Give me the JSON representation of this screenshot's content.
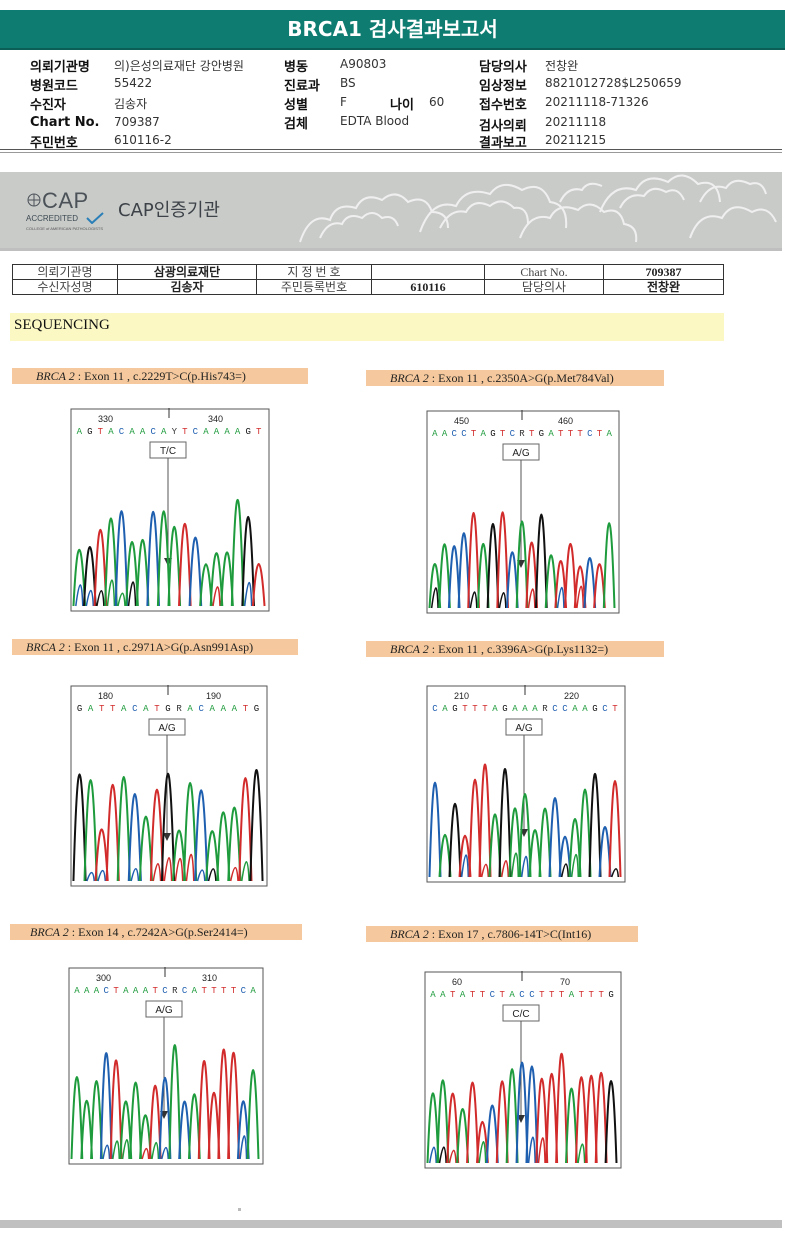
{
  "title": "BRCA1 검사결과보고서",
  "info": {
    "rows": [
      {
        "l1": "의뢰기관명",
        "v1": "의)은성의료재단 강안병원",
        "l2": "병동",
        "v2": "A90803",
        "l3": "담당의사",
        "v3": "전창완"
      },
      {
        "l1": "병원코드",
        "v1": "55422",
        "l2": "진료과",
        "v2": "BS",
        "l3": "임상정보",
        "v3": "8821012728$L250659"
      },
      {
        "l1": "수진자",
        "v1": "김송자",
        "l2": "성별",
        "v2": "F",
        "l2b": "나이",
        "v2b": "60",
        "l3": "접수번호",
        "v3": "20211118-71326"
      },
      {
        "l1": "Chart No.",
        "v1": "709387",
        "l2": "검체",
        "v2": "EDTA Blood",
        "l3": "검사의뢰",
        "v3": "20211118"
      },
      {
        "l1": "주민번호",
        "v1": "610116-2",
        "l2": "",
        "v2": "",
        "l3": "결과보고",
        "v3": "20211215"
      }
    ]
  },
  "cap": {
    "logo_main": "CAP",
    "logo_sub": "ACCREDITED",
    "logo_small": "COLLEGE of AMERICAN PATHOLOGISTS",
    "text": "CAP인증기관"
  },
  "patient_table": {
    "r1": [
      "의뢰기관명",
      "삼광의료재단",
      "지 정 번 호",
      "",
      "Chart No.",
      "709387"
    ],
    "r2": [
      "수신자성명",
      "김송자",
      "주민등록번호",
      "610116",
      "담당의사",
      "전창완"
    ]
  },
  "section": "SEQUENCING",
  "panels": [
    {
      "gene": "BRCA 2",
      "desc": " : Exon 11 , c.2229T>C(p.His743=)",
      "pos": [
        "330",
        "340"
      ],
      "seq": "AGTACAACAYTCAAAAGT",
      "call": "T/C"
    },
    {
      "gene": "BRCA 2",
      "desc": " : Exon 11 , c.2350A>G(p.Met784Val)",
      "pos": [
        "450",
        "460"
      ],
      "seq": "AACCTAGTCRTGATTTCTA",
      "call": "A/G"
    },
    {
      "gene": "BRCA 2",
      "desc": " : Exon 11 , c.2971A>G(p.Asn991Asp)",
      "pos": [
        "180",
        "190"
      ],
      "seq": "GATTACATGRACAAATG",
      "call": "A/G"
    },
    {
      "gene": "BRCA 2",
      "desc": " : Exon 11 , c.3396A>G(p.Lys1132=)",
      "pos": [
        "210",
        "220"
      ],
      "seq": "CAGTTTAGAAARCCAAGCT",
      "call": "A/G"
    },
    {
      "gene": "BRCA 2",
      "desc": " : Exon 14 , c.7242A>G(p.Ser2414=)",
      "pos": [
        "300",
        "310"
      ],
      "seq": "AAACTAAATCRCATTTTCA",
      "call": "A/G"
    },
    {
      "gene": "BRCA 2",
      "desc": " : Exon 17 , c.7806-14T>C(Int16)",
      "pos": [
        "60",
        "70"
      ],
      "seq": "AATATTCTACCTTTATTTG",
      "call": "C/C"
    }
  ],
  "colors": {
    "A": "#1e9b3c",
    "C": "#1f5fb0",
    "G": "#111111",
    "T": "#d22b2b",
    "teal": "#0e7c70",
    "caption_bg": "#f5c99d",
    "seq_bg": "#fbf8c4"
  }
}
